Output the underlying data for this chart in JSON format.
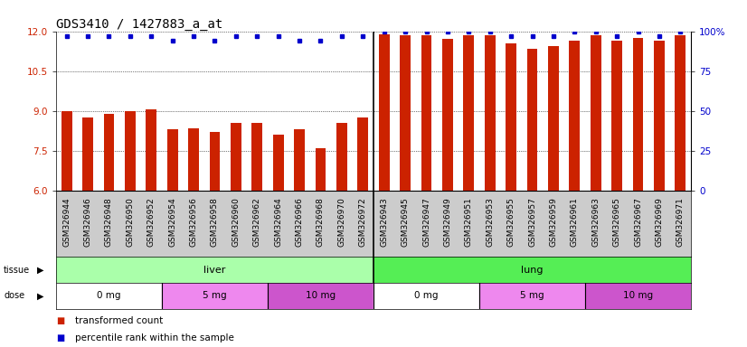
{
  "title": "GDS3410 / 1427883_a_at",
  "samples": [
    "GSM326944",
    "GSM326946",
    "GSM326948",
    "GSM326950",
    "GSM326952",
    "GSM326954",
    "GSM326956",
    "GSM326958",
    "GSM326960",
    "GSM326962",
    "GSM326964",
    "GSM326966",
    "GSM326968",
    "GSM326970",
    "GSM326972",
    "GSM326943",
    "GSM326945",
    "GSM326947",
    "GSM326949",
    "GSM326951",
    "GSM326953",
    "GSM326955",
    "GSM326957",
    "GSM326959",
    "GSM326961",
    "GSM326963",
    "GSM326965",
    "GSM326967",
    "GSM326969",
    "GSM326971"
  ],
  "bar_values": [
    8.98,
    8.75,
    8.88,
    9.0,
    9.05,
    8.3,
    8.35,
    8.2,
    8.55,
    8.55,
    8.1,
    8.3,
    7.6,
    8.55,
    8.75,
    11.9,
    11.85,
    11.85,
    11.7,
    11.85,
    11.85,
    11.55,
    11.35,
    11.45,
    11.65,
    11.85,
    11.65,
    11.75,
    11.65,
    11.85
  ],
  "percentile_values": [
    97,
    97,
    97,
    97,
    97,
    94,
    97,
    94,
    97,
    97,
    97,
    94,
    94,
    97,
    97,
    100,
    100,
    100,
    100,
    100,
    100,
    97,
    97,
    97,
    100,
    100,
    97,
    100,
    97,
    100
  ],
  "bar_color": "#CC2200",
  "dot_color": "#0000CC",
  "ylim_left": [
    6,
    12
  ],
  "ylim_right": [
    0,
    100
  ],
  "yticks_left": [
    6,
    7.5,
    9,
    10.5,
    12
  ],
  "yticks_right": [
    0,
    25,
    50,
    75,
    100
  ],
  "dose_groups": [
    {
      "label": "0 mg",
      "start": 0,
      "end": 5,
      "color": "#FFFFFF"
    },
    {
      "label": "5 mg",
      "start": 5,
      "end": 10,
      "color": "#EE88EE"
    },
    {
      "label": "10 mg",
      "start": 10,
      "end": 15,
      "color": "#CC55CC"
    },
    {
      "label": "0 mg",
      "start": 15,
      "end": 20,
      "color": "#FFFFFF"
    },
    {
      "label": "5 mg",
      "start": 20,
      "end": 25,
      "color": "#EE88EE"
    },
    {
      "label": "10 mg",
      "start": 25,
      "end": 30,
      "color": "#CC55CC"
    }
  ],
  "liver_color": "#AAFFAA",
  "lung_color": "#55EE55",
  "dose_0mg_color": "#FFFFFF",
  "dose_5mg_color": "#EE88EE",
  "dose_10mg_color": "#CC55CC",
  "xtick_bg": "#CCCCCC",
  "bar_width": 0.5,
  "title_fontsize": 10,
  "tick_fontsize": 6.5,
  "label_fontsize": 7.5,
  "n_liver": 15,
  "n_total": 30
}
